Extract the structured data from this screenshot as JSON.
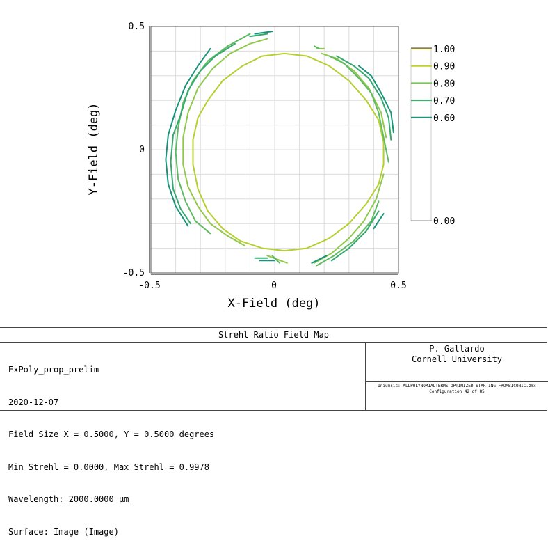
{
  "chart_data": {
    "type": "contour",
    "title": "Strehl Ratio Field Map",
    "xlabel": "X-Field (deg)",
    "ylabel": "Y-Field (deg)",
    "xlim": [
      -0.5,
      0.5
    ],
    "ylim": [
      -0.5,
      0.5
    ],
    "x_ticks": [
      "-0.5",
      "0",
      "0.5"
    ],
    "y_ticks": [
      "0.5",
      "0",
      "-0.5"
    ],
    "grid": true,
    "legend_position": "right",
    "legend": [
      {
        "label": "1.00",
        "color": "#d8c83a"
      },
      {
        "label": "0.90",
        "color": "#c0d22e"
      },
      {
        "label": "0.80",
        "color": "#7cc45a"
      },
      {
        "label": "0.70",
        "color": "#3caf6c"
      },
      {
        "label": "0.60",
        "color": "#1a9878"
      },
      {
        "label": "0.00",
        "color": "#ffffff"
      }
    ],
    "contours": [
      {
        "level": 0.9,
        "color": "#b5cf2e",
        "segments": [
          [
            [
              0.04,
              0.39
            ],
            [
              0.13,
              0.38
            ],
            [
              0.22,
              0.34
            ],
            [
              0.3,
              0.28
            ],
            [
              0.37,
              0.2
            ],
            [
              0.42,
              0.12
            ],
            [
              0.44,
              0.03
            ],
            [
              0.44,
              -0.06
            ],
            [
              0.42,
              -0.14
            ],
            [
              0.37,
              -0.22
            ],
            [
              0.3,
              -0.3
            ],
            [
              0.22,
              -0.36
            ],
            [
              0.13,
              -0.4
            ],
            [
              0.04,
              -0.41
            ],
            [
              -0.05,
              -0.4
            ],
            [
              -0.14,
              -0.37
            ],
            [
              -0.21,
              -0.32
            ],
            [
              -0.27,
              -0.25
            ],
            [
              -0.31,
              -0.16
            ],
            [
              -0.33,
              -0.06
            ],
            [
              -0.33,
              0.04
            ],
            [
              -0.31,
              0.13
            ],
            [
              -0.27,
              0.2
            ],
            [
              -0.21,
              0.28
            ],
            [
              -0.13,
              0.34
            ],
            [
              -0.05,
              0.38
            ],
            [
              0.04,
              0.39
            ]
          ]
        ]
      },
      {
        "level": 0.85,
        "color": "#8fc84a",
        "segments": [
          [
            [
              -0.03,
              0.45
            ],
            [
              -0.1,
              0.43
            ],
            [
              -0.18,
              0.39
            ],
            [
              -0.25,
              0.33
            ],
            [
              -0.31,
              0.25
            ],
            [
              -0.35,
              0.15
            ],
            [
              -0.37,
              0.05
            ],
            [
              -0.37,
              -0.06
            ],
            [
              -0.35,
              -0.15
            ],
            [
              -0.31,
              -0.23
            ],
            [
              -0.26,
              -0.3
            ],
            [
              -0.19,
              -0.35
            ],
            [
              -0.12,
              -0.39
            ]
          ],
          [
            [
              -0.03,
              -0.43
            ],
            [
              0.05,
              -0.46
            ]
          ],
          [
            [
              0.16,
              -0.46
            ],
            [
              0.23,
              -0.42
            ],
            [
              0.3,
              -0.36
            ],
            [
              0.36,
              -0.29
            ],
            [
              0.41,
              -0.2
            ],
            [
              0.44,
              -0.1
            ]
          ],
          [
            [
              0.45,
              0.05
            ],
            [
              0.43,
              0.15
            ],
            [
              0.38,
              0.25
            ],
            [
              0.32,
              0.32
            ],
            [
              0.25,
              0.37
            ],
            [
              0.19,
              0.39
            ]
          ],
          [
            [
              0.17,
              0.41
            ],
            [
              0.2,
              0.41
            ]
          ]
        ]
      },
      {
        "level": 0.8,
        "color": "#5fba62",
        "segments": [
          [
            [
              -0.1,
              0.47
            ],
            [
              -0.19,
              0.42
            ],
            [
              -0.27,
              0.36
            ],
            [
              -0.33,
              0.28
            ],
            [
              -0.37,
              0.19
            ],
            [
              -0.39,
              0.09
            ],
            [
              -0.4,
              -0.01
            ],
            [
              -0.39,
              -0.12
            ],
            [
              -0.36,
              -0.21
            ],
            [
              -0.32,
              -0.29
            ],
            [
              -0.26,
              -0.34
            ]
          ],
          [
            [
              -0.01,
              -0.43
            ],
            [
              0.02,
              -0.46
            ]
          ],
          [
            [
              0.17,
              -0.47
            ],
            [
              0.24,
              -0.43
            ],
            [
              0.32,
              -0.37
            ],
            [
              0.39,
              -0.29
            ],
            [
              0.42,
              -0.21
            ]
          ],
          [
            [
              0.46,
              -0.05
            ],
            [
              0.44,
              0.05
            ],
            [
              0.42,
              0.15
            ],
            [
              0.39,
              0.23
            ],
            [
              0.34,
              0.29
            ],
            [
              0.28,
              0.35
            ],
            [
              0.22,
              0.38
            ]
          ],
          [
            [
              0.16,
              0.42
            ],
            [
              0.18,
              0.41
            ]
          ]
        ]
      },
      {
        "level": 0.7,
        "color": "#35aa6e",
        "segments": [
          [
            [
              -0.16,
              0.43
            ],
            [
              -0.24,
              0.38
            ],
            [
              -0.3,
              0.32
            ],
            [
              -0.35,
              0.24
            ],
            [
              -0.38,
              0.14
            ],
            [
              -0.41,
              0.06
            ],
            [
              -0.42,
              -0.05
            ],
            [
              -0.41,
              -0.16
            ],
            [
              -0.38,
              -0.24
            ],
            [
              -0.34,
              -0.3
            ]
          ],
          [
            [
              -0.1,
              0.46
            ],
            [
              -0.03,
              0.47
            ]
          ],
          [
            [
              0.23,
              -0.45
            ],
            [
              0.3,
              -0.4
            ],
            [
              0.37,
              -0.33
            ],
            [
              0.42,
              -0.25
            ]
          ],
          [
            [
              0.47,
              0.04
            ],
            [
              0.46,
              0.13
            ],
            [
              0.43,
              0.21
            ],
            [
              0.38,
              0.29
            ],
            [
              0.32,
              0.34
            ],
            [
              0.25,
              0.38
            ]
          ],
          [
            [
              -0.08,
              -0.44
            ],
            [
              -0.03,
              -0.44
            ]
          ]
        ]
      },
      {
        "level": 0.6,
        "color": "#16947a",
        "segments": [
          [
            [
              -0.26,
              0.41
            ],
            [
              -0.31,
              0.34
            ],
            [
              -0.36,
              0.26
            ],
            [
              -0.4,
              0.16
            ],
            [
              -0.43,
              0.06
            ],
            [
              -0.44,
              -0.04
            ],
            [
              -0.43,
              -0.14
            ],
            [
              -0.4,
              -0.23
            ],
            [
              -0.35,
              -0.31
            ]
          ],
          [
            [
              -0.06,
              -0.45
            ],
            [
              0.0,
              -0.45
            ]
          ],
          [
            [
              -0.08,
              0.47
            ],
            [
              -0.01,
              0.48
            ]
          ],
          [
            [
              0.48,
              0.07
            ],
            [
              0.47,
              0.15
            ],
            [
              0.43,
              0.23
            ],
            [
              0.39,
              0.3
            ],
            [
              0.34,
              0.34
            ]
          ],
          [
            [
              0.15,
              -0.46
            ],
            [
              0.21,
              -0.43
            ]
          ],
          [
            [
              0.4,
              -0.32
            ],
            [
              0.44,
              -0.26
            ]
          ]
        ]
      }
    ]
  },
  "info": {
    "title": "Strehl Ratio Field Map",
    "lines": [
      "ExPoly_prop_prelim",
      "2020-12-07",
      "Field Size X = 0.5000, Y = 0.5000 degrees",
      "Min Strehl = 0.0000, Max Strehl = 0.9978",
      "Wavelength: 2000.0000 µm",
      "Surface: Image (Image)"
    ],
    "author": "P. Gallardo",
    "institution": "Cornell University",
    "filename": "Iniumsic: ALLPOLYNOMIALTERMS_OPTIMIZED_STARTING_FROMBICONIC.zmx",
    "config": "Configuration 42 of 85"
  }
}
